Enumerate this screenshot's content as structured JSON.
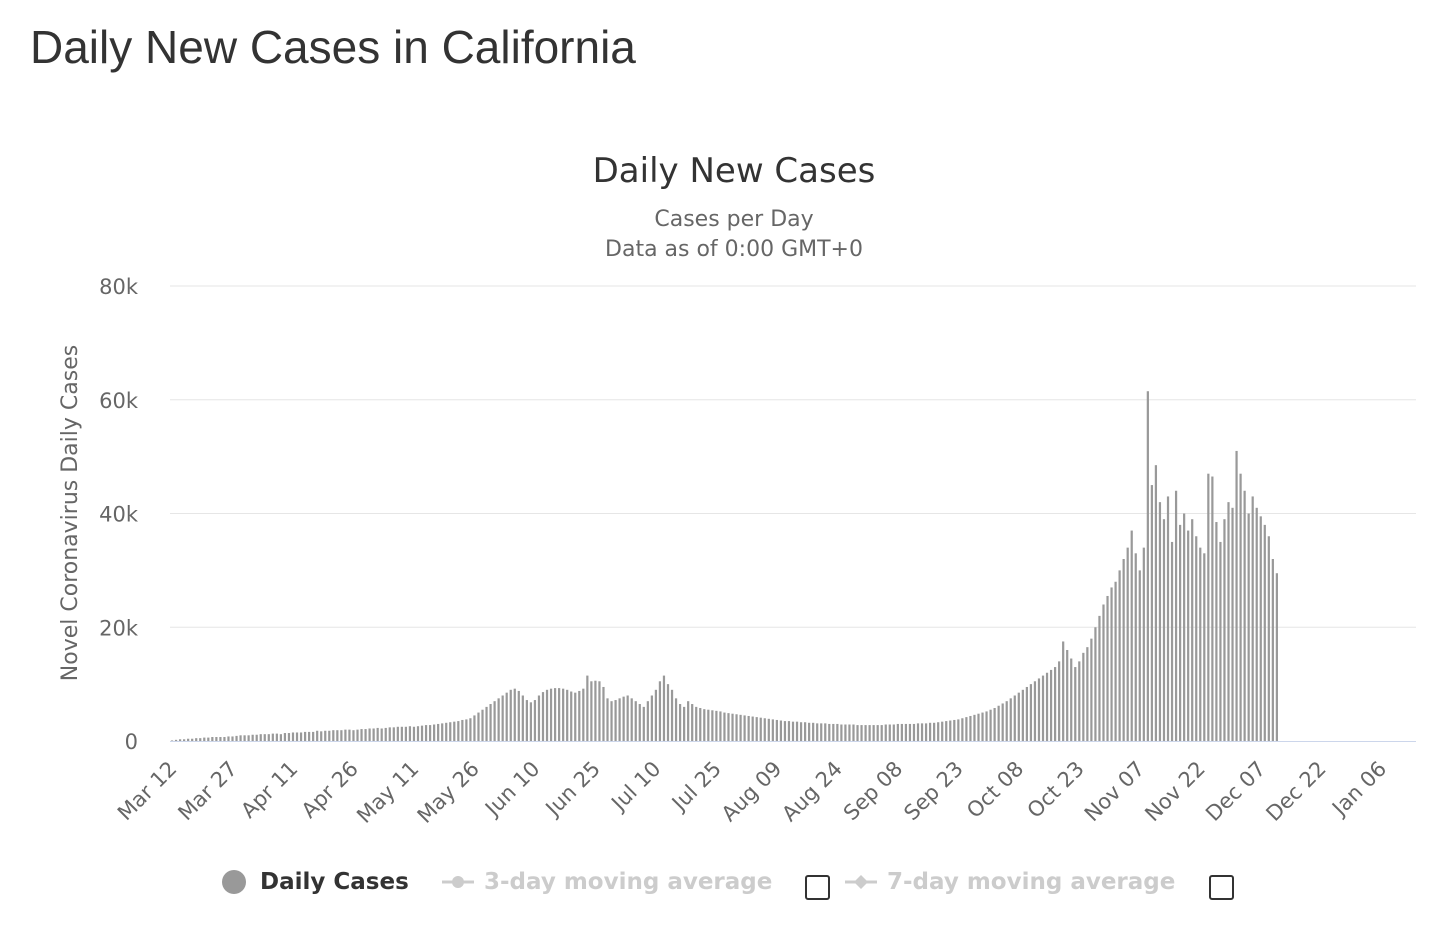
{
  "page": {
    "title": "Daily New Cases in California"
  },
  "chart_data": {
    "type": "bar",
    "title": "Daily New Cases",
    "subtitle_lines": [
      "Cases per Day",
      "Data as of 0:00 GMT+0"
    ],
    "ylabel": "Novel Coronavirus Daily Cases",
    "xlabel": "",
    "ylim": [
      0,
      80000
    ],
    "yticks": [
      0,
      20000,
      40000,
      60000,
      80000
    ],
    "ytick_labels": [
      "0",
      "20k",
      "40k",
      "60k",
      "80k"
    ],
    "x_start": "2020-03-12",
    "x_end": "2021-01-14",
    "xtick_labels": [
      "Mar 12",
      "Mar 27",
      "Apr 11",
      "Apr 26",
      "May 11",
      "May 26",
      "Jun 10",
      "Jun 25",
      "Jul 10",
      "Jul 25",
      "Aug 09",
      "Aug 24",
      "Sep 08",
      "Sep 23",
      "Oct 08",
      "Oct 23",
      "Nov 07",
      "Nov 22",
      "Dec 07",
      "Dec 22",
      "Jan 06"
    ],
    "grid": true,
    "bar_color": "#999999",
    "series": [
      {
        "name": "Daily Cases",
        "values": [
          100,
          200,
          300,
          300,
          400,
          400,
          500,
          500,
          600,
          600,
          700,
          700,
          700,
          700,
          800,
          800,
          900,
          1000,
          1000,
          1000,
          1100,
          1100,
          1200,
          1200,
          1200,
          1300,
          1300,
          1200,
          1400,
          1400,
          1500,
          1500,
          1500,
          1600,
          1600,
          1600,
          1800,
          1700,
          1800,
          1800,
          1900,
          1900,
          1900,
          2000,
          2000,
          1900,
          2000,
          2100,
          2100,
          2200,
          2200,
          2300,
          2200,
          2300,
          2400,
          2400,
          2500,
          2500,
          2500,
          2600,
          2500,
          2600,
          2700,
          2800,
          2800,
          2900,
          3000,
          3100,
          3200,
          3300,
          3400,
          3500,
          3700,
          3800,
          4000,
          4500,
          5000,
          5500,
          6000,
          6500,
          7000,
          7500,
          8000,
          8500,
          9000,
          9200,
          8800,
          8000,
          7200,
          6800,
          7200,
          8000,
          8600,
          9000,
          9200,
          9300,
          9300,
          9200,
          9000,
          8700,
          8500,
          8800,
          9200,
          11500,
          10500,
          10600,
          10500,
          9500,
          7500,
          7000,
          7200,
          7500,
          7800,
          8000,
          7500,
          7000,
          6500,
          6000,
          7000,
          8000,
          9000,
          10500,
          11500,
          10000,
          9000,
          7500,
          6500,
          6000,
          7000,
          6500,
          6000,
          5800,
          5600,
          5500,
          5400,
          5300,
          5200,
          5000,
          4900,
          4800,
          4700,
          4600,
          4500,
          4400,
          4300,
          4200,
          4100,
          4000,
          3900,
          3800,
          3700,
          3600,
          3500,
          3500,
          3400,
          3400,
          3300,
          3300,
          3200,
          3200,
          3100,
          3100,
          3100,
          3000,
          3000,
          3000,
          2900,
          2900,
          2900,
          2900,
          2800,
          2800,
          2800,
          2800,
          2800,
          2800,
          2800,
          2900,
          2900,
          2900,
          3000,
          3000,
          3000,
          3000,
          3000,
          3100,
          3100,
          3100,
          3200,
          3200,
          3300,
          3400,
          3500,
          3600,
          3700,
          3800,
          4000,
          4200,
          4400,
          4600,
          4800,
          5000,
          5200,
          5500,
          5800,
          6200,
          6600,
          7000,
          7500,
          8000,
          8500,
          9000,
          9500,
          10000,
          10500,
          11000,
          11500,
          12000,
          12500,
          13000,
          14000,
          17500,
          16000,
          14500,
          13000,
          14000,
          15500,
          16500,
          18000,
          20000,
          22000,
          24000,
          25500,
          27000,
          28000,
          30000,
          32000,
          34000,
          37000,
          33000,
          30000,
          34000,
          61500,
          45000,
          48500,
          42000,
          39000,
          43000,
          35000,
          44000,
          38000,
          40000,
          37000,
          39000,
          36000,
          34000,
          33000,
          47000,
          46500,
          38500,
          35000,
          39000,
          42000,
          41000,
          51000,
          47000,
          44000,
          40000,
          43000,
          41000,
          39500,
          38000,
          36000,
          32000,
          29500
        ]
      }
    ],
    "legend": {
      "position": "bottom",
      "items": [
        {
          "label": "Daily Cases",
          "color": "#999999",
          "active": true
        },
        {
          "label": "3-day moving average",
          "color": "#cccccc",
          "active": false
        },
        {
          "label": "7-day moving average",
          "color": "#cccccc",
          "active": false
        }
      ]
    }
  }
}
